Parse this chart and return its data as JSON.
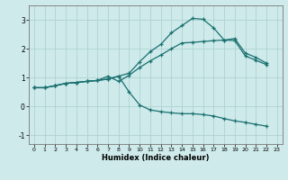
{
  "xlabel": "Humidex (Indice chaleur)",
  "ylabel": "",
  "background_color": "#ceeaea",
  "grid_color": "#aacece",
  "line_color": "#1a7070",
  "xlim": [
    -0.5,
    23.5
  ],
  "ylim": [
    -1.3,
    3.5
  ],
  "xticks": [
    0,
    1,
    2,
    3,
    4,
    5,
    6,
    7,
    8,
    9,
    10,
    11,
    12,
    13,
    14,
    15,
    16,
    17,
    18,
    19,
    20,
    21,
    22,
    23
  ],
  "yticks": [
    -1,
    0,
    1,
    2,
    3
  ],
  "line1_x": [
    0,
    1,
    2,
    3,
    4,
    5,
    6,
    7,
    8,
    9,
    10,
    11,
    12,
    13,
    14,
    15,
    16,
    17,
    18,
    19,
    20,
    21,
    22
  ],
  "line1_y": [
    0.65,
    0.65,
    0.72,
    0.8,
    0.83,
    0.87,
    0.9,
    0.95,
    1.05,
    1.15,
    1.55,
    1.9,
    2.15,
    2.55,
    2.8,
    3.05,
    3.02,
    2.72,
    2.3,
    2.28,
    1.75,
    1.6,
    1.45
  ],
  "line2_x": [
    0,
    1,
    2,
    3,
    4,
    5,
    6,
    7,
    8,
    9,
    10,
    11,
    12,
    13,
    14,
    15,
    16,
    17,
    18,
    19,
    20,
    21,
    22
  ],
  "line2_y": [
    0.65,
    0.65,
    0.72,
    0.8,
    0.83,
    0.87,
    0.9,
    1.05,
    0.87,
    1.08,
    1.35,
    1.58,
    1.78,
    2.0,
    2.2,
    2.22,
    2.25,
    2.28,
    2.3,
    2.35,
    1.85,
    1.7,
    1.5
  ],
  "line3_x": [
    0,
    1,
    2,
    3,
    4,
    5,
    6,
    7,
    8,
    9,
    10,
    11,
    12,
    13,
    14,
    15,
    16,
    17,
    18,
    19,
    20,
    21,
    22
  ],
  "line3_y": [
    0.65,
    0.65,
    0.72,
    0.8,
    0.83,
    0.87,
    0.9,
    0.95,
    1.05,
    0.5,
    0.05,
    -0.12,
    -0.18,
    -0.22,
    -0.25,
    -0.25,
    -0.28,
    -0.33,
    -0.42,
    -0.5,
    -0.55,
    -0.62,
    -0.68
  ]
}
